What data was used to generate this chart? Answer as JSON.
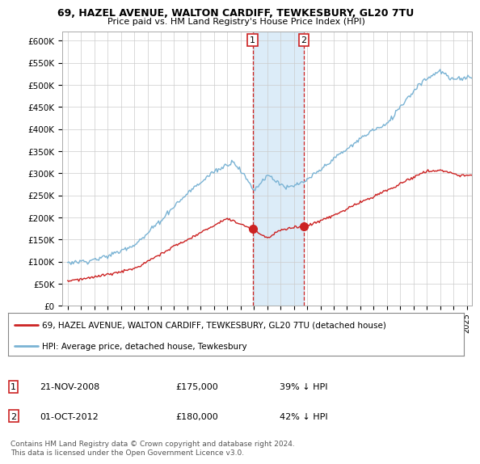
{
  "title1": "69, HAZEL AVENUE, WALTON CARDIFF, TEWKESBURY, GL20 7TU",
  "title2": "Price paid vs. HM Land Registry's House Price Index (HPI)",
  "legend1": "69, HAZEL AVENUE, WALTON CARDIFF, TEWKESBURY, GL20 7TU (detached house)",
  "legend2": "HPI: Average price, detached house, Tewkesbury",
  "sale1_date": "21-NOV-2008",
  "sale1_price": 175000,
  "sale1_label": "39% ↓ HPI",
  "sale2_date": "01-OCT-2012",
  "sale2_price": 180000,
  "sale2_label": "42% ↓ HPI",
  "sale1_year": 2008.9,
  "sale2_year": 2012.75,
  "hpi_color": "#7ab3d4",
  "price_color": "#cc2222",
  "marker_color": "#cc2222",
  "shading_color": "#d6e9f7",
  "footer": "Contains HM Land Registry data © Crown copyright and database right 2024.\nThis data is licensed under the Open Government Licence v3.0.",
  "ylim_min": 0,
  "ylim_max": 620000,
  "yticks": [
    0,
    50000,
    100000,
    150000,
    200000,
    250000,
    300000,
    350000,
    400000,
    450000,
    500000,
    550000,
    600000
  ],
  "ytick_labels": [
    "£0",
    "£50K",
    "£100K",
    "£150K",
    "£200K",
    "£250K",
    "£300K",
    "£350K",
    "£400K",
    "£450K",
    "£500K",
    "£550K",
    "£600K"
  ],
  "xmin": 1994.6,
  "xmax": 2025.4,
  "background_color": "#ffffff",
  "grid_color": "#cccccc"
}
